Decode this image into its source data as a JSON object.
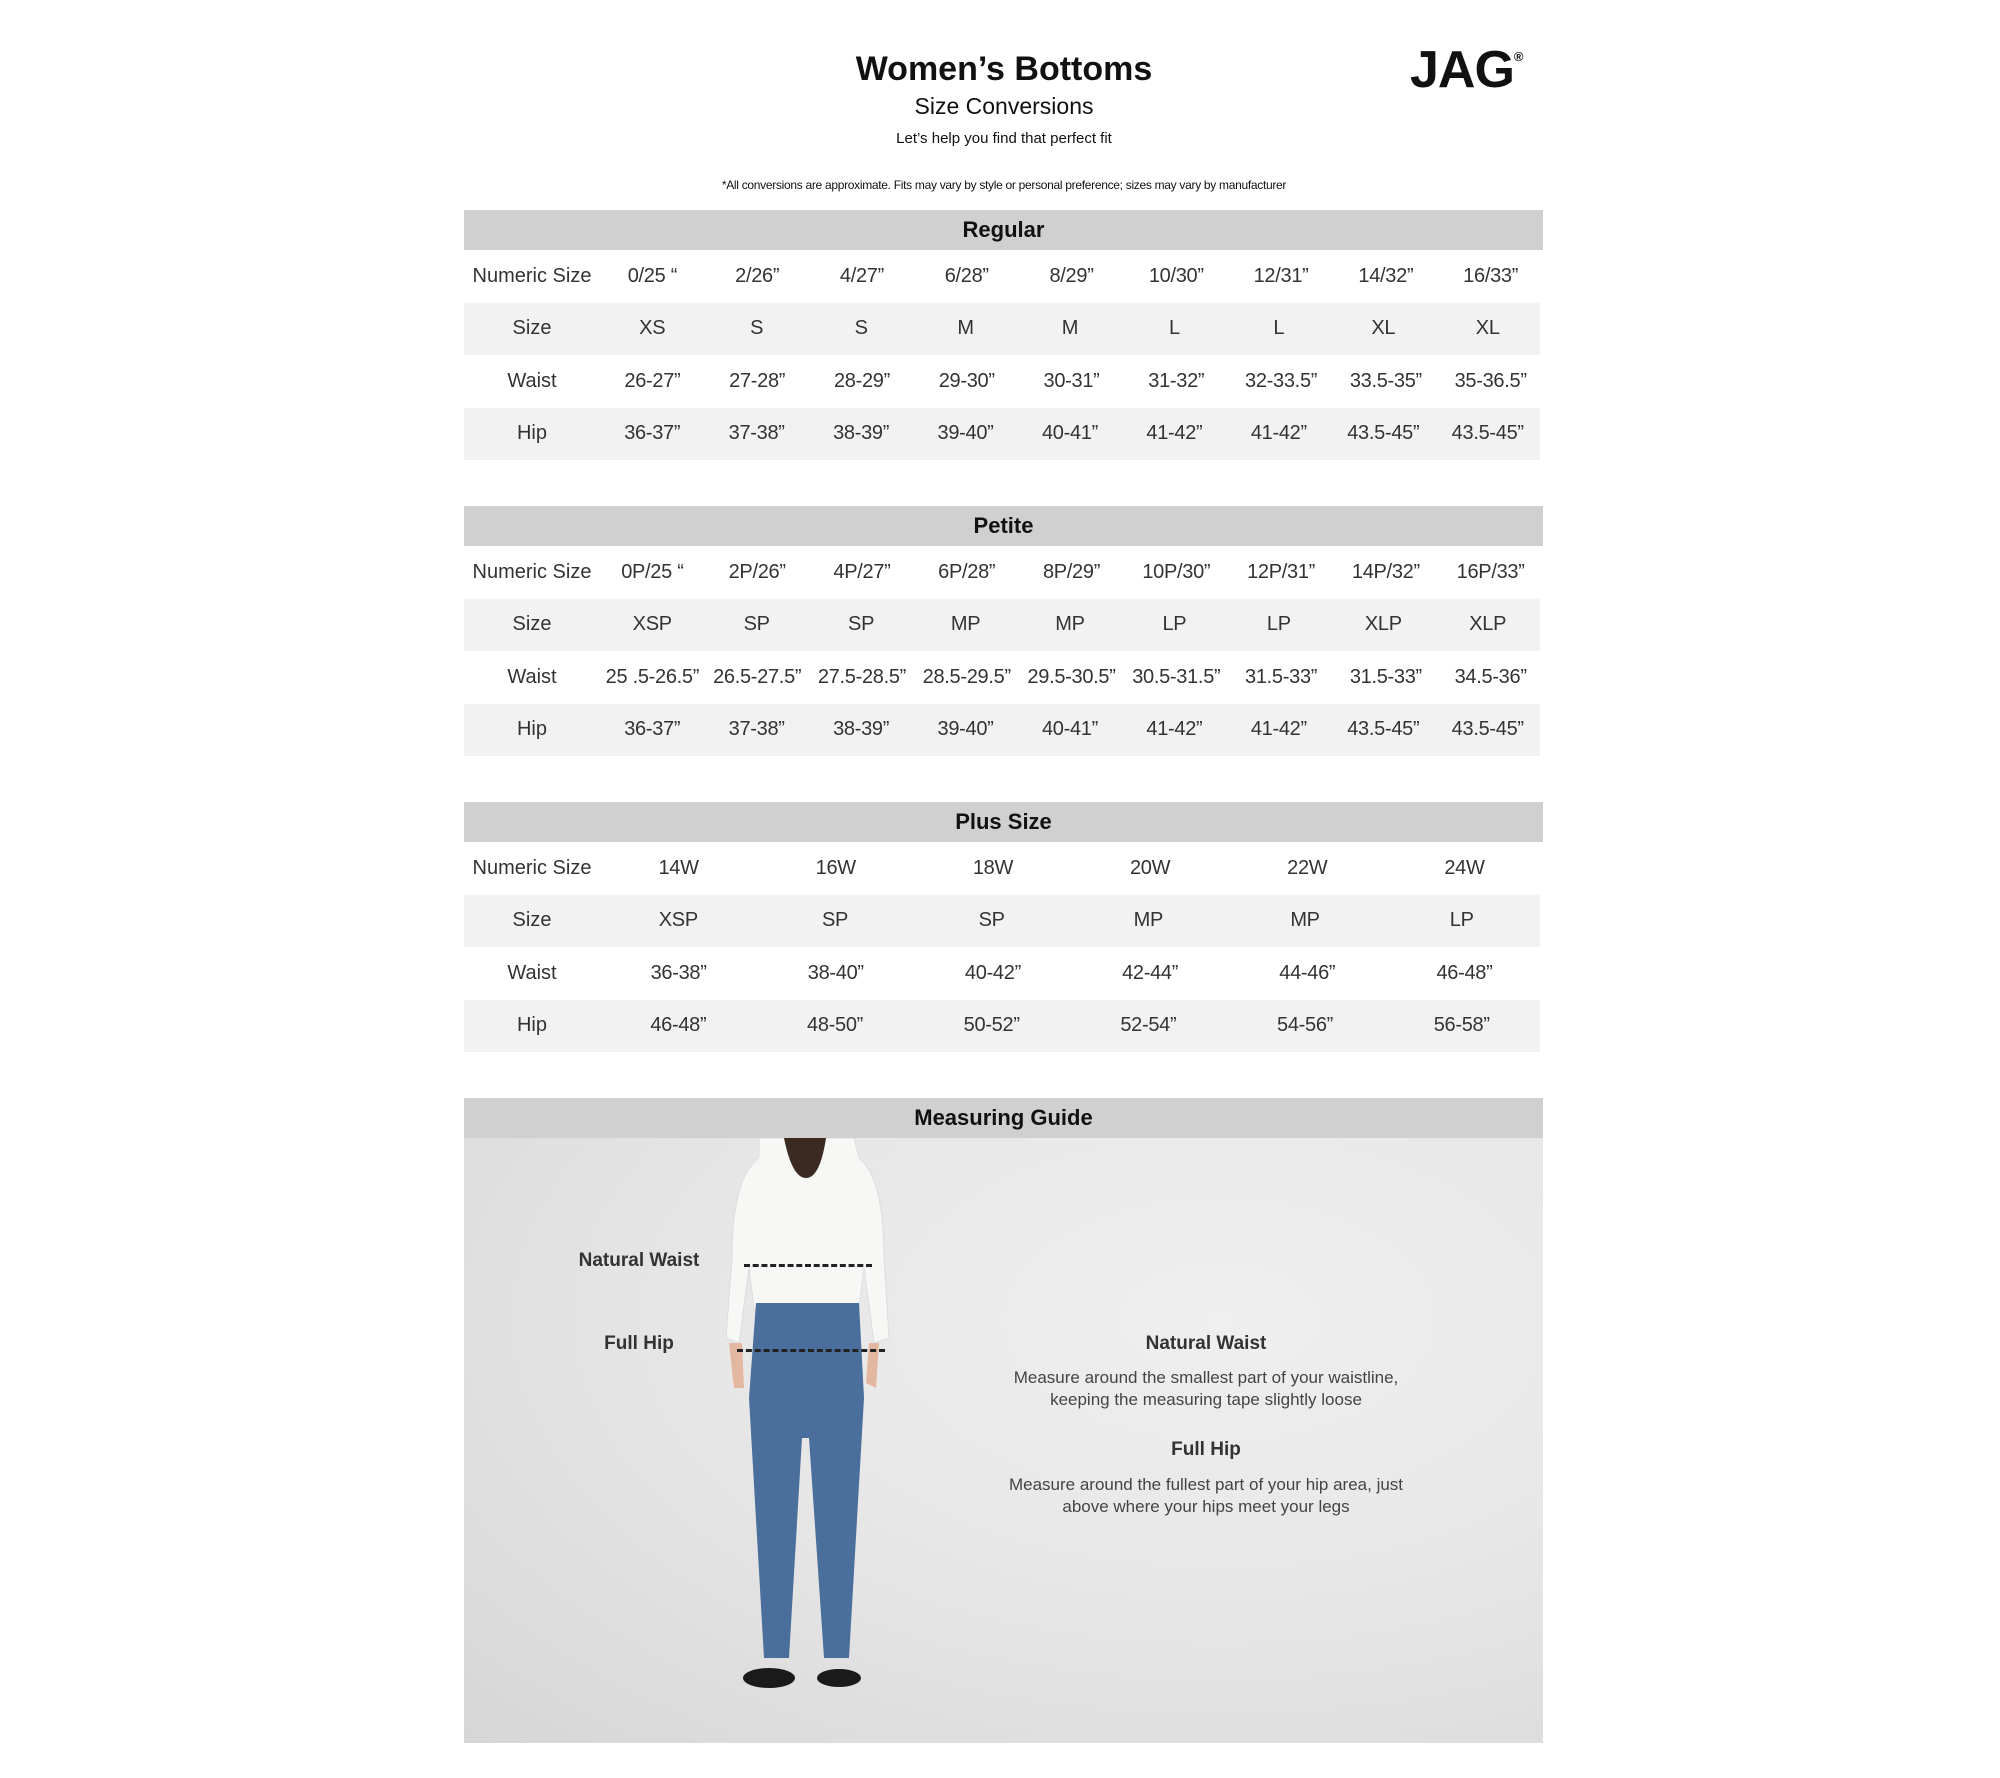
{
  "header": {
    "title": "Women’s Bottoms",
    "subtitle": "Size Conversions",
    "tagline": "Let’s help you find that perfect fit",
    "disclaimer": "*All conversions are approximate. Fits may vary by style or personal preference; sizes may vary by manufacturer",
    "logo": "JAG",
    "logo_mark": "®"
  },
  "tables": [
    {
      "title": "Regular",
      "rows": [
        {
          "label": "Numeric Size",
          "values": [
            "0/25 “",
            "2/26”",
            "4/27”",
            "6/28”",
            "8/29”",
            "10/30”",
            "12/31”",
            "14/32”",
            "16/33”"
          ]
        },
        {
          "label": "Size",
          "values": [
            "XS",
            "S",
            "S",
            "M",
            "M",
            "L",
            "L",
            "XL",
            "XL"
          ]
        },
        {
          "label": "Waist",
          "values": [
            "26-27”",
            "27-28”",
            "28-29”",
            "29-30”",
            "30-31”",
            "31-32”",
            "32-33.5”",
            "33.5-35”",
            "35-36.5”"
          ]
        },
        {
          "label": "Hip",
          "values": [
            "36-37”",
            "37-38”",
            "38-39”",
            "39-40”",
            "40-41”",
            "41-42”",
            "41-42”",
            "43.5-45”",
            "43.5-45”"
          ]
        }
      ]
    },
    {
      "title": "Petite",
      "rows": [
        {
          "label": "Numeric Size",
          "values": [
            "0P/25 “",
            "2P/26”",
            "4P/27”",
            "6P/28”",
            "8P/29”",
            "10P/30”",
            "12P/31”",
            "14P/32”",
            "16P/33”"
          ]
        },
        {
          "label": "Size",
          "values": [
            "XSP",
            "SP",
            "SP",
            "MP",
            "MP",
            "LP",
            "LP",
            "XLP",
            "XLP"
          ]
        },
        {
          "label": "Waist",
          "values": [
            "25 .5-26.5”",
            "26.5-27.5”",
            "27.5-28.5”",
            "28.5-29.5”",
            "29.5-30.5”",
            "30.5-31.5”",
            "31.5-33”",
            "31.5-33”",
            "34.5-36”"
          ]
        },
        {
          "label": "Hip",
          "values": [
            "36-37”",
            "37-38”",
            "38-39”",
            "39-40”",
            "40-41”",
            "41-42”",
            "41-42”",
            "43.5-45”",
            "43.5-45”"
          ]
        }
      ]
    },
    {
      "title": "Plus Size",
      "rows": [
        {
          "label": "Numeric Size",
          "values": [
            "14W",
            "16W",
            "18W",
            "20W",
            "22W",
            "24W"
          ]
        },
        {
          "label": "Size",
          "values": [
            "XSP",
            "SP",
            "SP",
            "MP",
            "MP",
            "LP"
          ]
        },
        {
          "label": "Waist",
          "values": [
            "36-38”",
            "38-40”",
            "40-42”",
            "42-44”",
            "44-46”",
            "46-48”"
          ]
        },
        {
          "label": "Hip",
          "values": [
            "46-48”",
            "48-50”",
            "50-52”",
            "52-54”",
            "54-56”",
            "56-58”"
          ]
        }
      ]
    }
  ],
  "guide": {
    "title": "Measuring Guide",
    "photo_labels": {
      "waist": "Natural Waist",
      "hip": "Full Hip"
    },
    "waist_heading": "Natural Waist",
    "waist_desc_1": "Measure around the smallest part of your waistline,",
    "waist_desc_2": "keeping the measuring tape slightly loose",
    "hip_heading": "Full Hip",
    "hip_desc_1": "Measure around the fullest part of your hip area, just",
    "hip_desc_2": "above where your hips meet your legs"
  },
  "colors": {
    "section_header": "#d0d0d0",
    "alt_row": "#f2f2f2",
    "denim": "#4a6f9c",
    "shirt": "#f7f7f5"
  }
}
